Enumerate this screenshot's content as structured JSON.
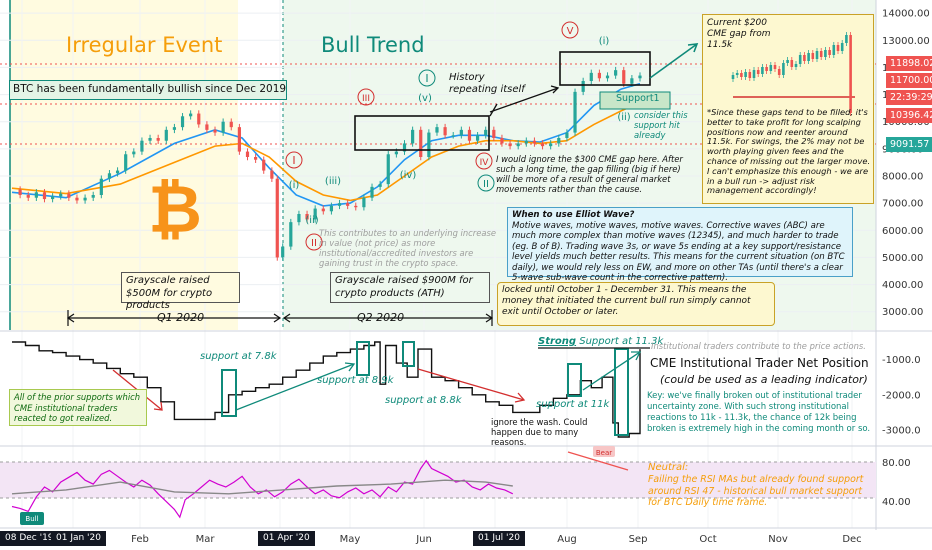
{
  "chart_data": {
    "type": "line",
    "title": "",
    "x_ticks": [
      "08 Dec '19",
      "01 Jan '20",
      "Feb",
      "Mar",
      "01 Apr '20",
      "May",
      "Jun",
      "01 Jul '20",
      "Aug",
      "Sep",
      "Oct",
      "Nov",
      "Dec"
    ],
    "price_axis": {
      "ticks": [
        14000,
        13000,
        12000,
        11000,
        10000,
        9000,
        8000,
        7000,
        6000,
        5000,
        4000,
        3000
      ],
      "range": [
        2400,
        14300
      ]
    },
    "price_labels": [
      {
        "value": "11898.02",
        "color": "#ef5350"
      },
      {
        "value": "11700.00",
        "color": "#ef5350"
      },
      {
        "value": "22:39:29",
        "color": "#ef5350"
      },
      {
        "value": "10396.42",
        "color": "#ef5350"
      },
      {
        "value": "9091.57",
        "color": "#26a69a"
      }
    ],
    "price_series": [
      [
        0,
        7500
      ],
      [
        3,
        7300
      ],
      [
        6,
        7200
      ],
      [
        9,
        7400
      ],
      [
        12,
        7150
      ],
      [
        15,
        7250
      ],
      [
        18,
        7350
      ],
      [
        21,
        7200
      ],
      [
        24,
        7100
      ],
      [
        27,
        7200
      ],
      [
        30,
        7300
      ],
      [
        33,
        7900
      ],
      [
        36,
        8100
      ],
      [
        39,
        8200
      ],
      [
        42,
        8800
      ],
      [
        45,
        8900
      ],
      [
        48,
        9300
      ],
      [
        51,
        9400
      ],
      [
        54,
        9300
      ],
      [
        57,
        9700
      ],
      [
        60,
        9800
      ],
      [
        63,
        10200
      ],
      [
        66,
        10300
      ],
      [
        69,
        9900
      ],
      [
        72,
        9700
      ],
      [
        75,
        9600
      ],
      [
        78,
        10000
      ],
      [
        81,
        9800
      ],
      [
        84,
        8900
      ],
      [
        87,
        8700
      ],
      [
        90,
        8600
      ],
      [
        93,
        8200
      ],
      [
        96,
        7900
      ],
      [
        98,
        5000
      ],
      [
        100,
        5400
      ],
      [
        103,
        6300
      ],
      [
        106,
        6600
      ],
      [
        109,
        6400
      ],
      [
        112,
        6800
      ],
      [
        115,
        6700
      ],
      [
        118,
        6900
      ],
      [
        121,
        7000
      ],
      [
        124,
        6900
      ],
      [
        127,
        6850
      ],
      [
        130,
        7200
      ],
      [
        133,
        7600
      ],
      [
        136,
        7700
      ],
      [
        139,
        8800
      ],
      [
        142,
        8900
      ],
      [
        145,
        9200
      ],
      [
        148,
        9700
      ],
      [
        151,
        8700
      ],
      [
        154,
        9600
      ],
      [
        157,
        9800
      ],
      [
        160,
        9500
      ],
      [
        163,
        9500
      ],
      [
        166,
        9700
      ],
      [
        169,
        9300
      ],
      [
        172,
        9500
      ],
      [
        175,
        9700
      ],
      [
        178,
        9400
      ],
      [
        181,
        9200
      ],
      [
        184,
        9100
      ],
      [
        187,
        9200
      ],
      [
        190,
        9300
      ],
      [
        193,
        9200
      ],
      [
        196,
        9100
      ],
      [
        199,
        9200
      ],
      [
        202,
        9400
      ],
      [
        205,
        9600
      ],
      [
        208,
        11100
      ],
      [
        211,
        11500
      ],
      [
        214,
        11800
      ],
      [
        217,
        11600
      ],
      [
        220,
        11700
      ],
      [
        223,
        11900
      ],
      [
        226,
        11400
      ],
      [
        229,
        11600
      ],
      [
        232,
        11700
      ]
    ],
    "ma_series": [
      {
        "name": "",
        "color": "#2196f3",
        "values": [
          [
            0,
            7400
          ],
          [
            20,
            7200
          ],
          [
            40,
            8100
          ],
          [
            60,
            9200
          ],
          [
            75,
            9700
          ],
          [
            85,
            9400
          ],
          [
            95,
            8300
          ],
          [
            105,
            7300
          ],
          [
            115,
            6900
          ],
          [
            125,
            7000
          ],
          [
            135,
            7600
          ],
          [
            145,
            8600
          ],
          [
            155,
            9300
          ],
          [
            165,
            9500
          ],
          [
            175,
            9500
          ],
          [
            185,
            9300
          ],
          [
            195,
            9250
          ],
          [
            205,
            9600
          ],
          [
            215,
            10600
          ],
          [
            225,
            11200
          ],
          [
            232,
            11400
          ]
        ]
      },
      {
        "name": "",
        "color": "#ff9800",
        "values": [
          [
            0,
            7550
          ],
          [
            20,
            7350
          ],
          [
            40,
            7700
          ],
          [
            60,
            8500
          ],
          [
            75,
            9100
          ],
          [
            85,
            9200
          ],
          [
            95,
            8700
          ],
          [
            105,
            7800
          ],
          [
            115,
            7300
          ],
          [
            125,
            7100
          ],
          [
            135,
            7300
          ],
          [
            145,
            8000
          ],
          [
            155,
            8700
          ],
          [
            165,
            9100
          ],
          [
            175,
            9300
          ],
          [
            185,
            9300
          ],
          [
            195,
            9200
          ],
          [
            205,
            9300
          ],
          [
            215,
            9900
          ],
          [
            225,
            10400
          ],
          [
            232,
            10700
          ]
        ]
      }
    ],
    "cot_axis": {
      "ticks": [
        -1000,
        -2000,
        -3000
      ],
      "range": [
        -3400,
        -300
      ]
    },
    "cot_series": [
      [
        0,
        -500
      ],
      [
        5,
        -600
      ],
      [
        10,
        -750
      ],
      [
        15,
        -800
      ],
      [
        20,
        -900
      ],
      [
        25,
        -1000
      ],
      [
        30,
        -1100
      ],
      [
        35,
        -1250
      ],
      [
        40,
        -1400
      ],
      [
        45,
        -1500
      ],
      [
        50,
        -1800
      ],
      [
        55,
        -2200
      ],
      [
        60,
        -2700
      ],
      [
        65,
        -2700
      ],
      [
        70,
        -2700
      ],
      [
        75,
        -2500
      ],
      [
        80,
        -2000
      ],
      [
        85,
        -1900
      ],
      [
        90,
        -1800
      ],
      [
        95,
        -1700
      ],
      [
        100,
        -1500
      ],
      [
        105,
        -1300
      ],
      [
        110,
        -1100
      ],
      [
        115,
        -900
      ],
      [
        120,
        -800
      ],
      [
        125,
        -700
      ],
      [
        130,
        -600
      ],
      [
        134,
        -500
      ],
      [
        136,
        -1700
      ],
      [
        138,
        -600
      ],
      [
        142,
        -1100
      ],
      [
        146,
        -1500
      ],
      [
        150,
        -700
      ],
      [
        155,
        -1500
      ],
      [
        160,
        -1600
      ],
      [
        165,
        -1800
      ],
      [
        170,
        -2000
      ],
      [
        175,
        -2200
      ],
      [
        180,
        -2300
      ],
      [
        185,
        -2500
      ],
      [
        190,
        -2500
      ],
      [
        195,
        -2300
      ],
      [
        200,
        -2100
      ],
      [
        205,
        -2000
      ],
      [
        210,
        -1600
      ],
      [
        214,
        -1800
      ],
      [
        218,
        -1500
      ],
      [
        222,
        -2800
      ],
      [
        224,
        -3200
      ],
      [
        228,
        -3100
      ],
      [
        232,
        -700
      ]
    ],
    "rsi_axis": {
      "ticks": [
        80,
        40
      ],
      "range": [
        15,
        95
      ]
    },
    "rsi_series": [
      [
        0,
        35
      ],
      [
        3,
        33
      ],
      [
        6,
        30
      ],
      [
        9,
        45
      ],
      [
        12,
        55
      ],
      [
        15,
        50
      ],
      [
        18,
        60
      ],
      [
        21,
        65
      ],
      [
        24,
        70
      ],
      [
        27,
        62
      ],
      [
        30,
        58
      ],
      [
        33,
        68
      ],
      [
        36,
        72
      ],
      [
        39,
        66
      ],
      [
        42,
        60
      ],
      [
        45,
        55
      ],
      [
        48,
        62
      ],
      [
        51,
        57
      ],
      [
        54,
        48
      ],
      [
        57,
        40
      ],
      [
        60,
        32
      ],
      [
        62,
        24
      ],
      [
        64,
        42
      ],
      [
        67,
        48
      ],
      [
        70,
        55
      ],
      [
        73,
        62
      ],
      [
        76,
        58
      ],
      [
        79,
        55
      ],
      [
        82,
        60
      ],
      [
        85,
        66
      ],
      [
        88,
        55
      ],
      [
        91,
        48
      ],
      [
        94,
        52
      ],
      [
        97,
        45
      ],
      [
        100,
        50
      ],
      [
        103,
        58
      ],
      [
        106,
        63
      ],
      [
        109,
        55
      ],
      [
        112,
        48
      ],
      [
        115,
        52
      ],
      [
        118,
        46
      ],
      [
        121,
        44
      ],
      [
        124,
        50
      ],
      [
        127,
        54
      ],
      [
        130,
        48
      ],
      [
        133,
        52
      ],
      [
        136,
        45
      ],
      [
        139,
        55
      ],
      [
        142,
        50
      ],
      [
        145,
        60
      ],
      [
        148,
        58
      ],
      [
        151,
        74
      ],
      [
        153,
        82
      ],
      [
        155,
        74
      ],
      [
        158,
        70
      ],
      [
        161,
        66
      ],
      [
        164,
        60
      ],
      [
        167,
        62
      ],
      [
        170,
        55
      ],
      [
        173,
        52
      ],
      [
        176,
        58
      ],
      [
        179,
        54
      ],
      [
        182,
        52
      ],
      [
        185,
        48
      ]
    ],
    "rsi_ma": [
      [
        0,
        48
      ],
      [
        20,
        52
      ],
      [
        40,
        60
      ],
      [
        60,
        50
      ],
      [
        80,
        48
      ],
      [
        100,
        52
      ],
      [
        120,
        56
      ],
      [
        140,
        58
      ],
      [
        160,
        62
      ],
      [
        175,
        60
      ],
      [
        185,
        56
      ]
    ],
    "ylabel": ""
  },
  "text": {
    "irregular_event": "Irregular Event",
    "bull_trend": "Bull Trend",
    "fundamental": "BTC has been fundamentally bullish since Dec 2019",
    "history": "History repeating itself",
    "support1": "Support1",
    "consider": "consider this support hit already",
    "gs500": "Grayscale raised $500M for crypto products",
    "gs900": "Grayscale raised $900M for crypto products (ATH)",
    "q1": "Q1 2020",
    "q2": "Q2 2020",
    "cme_ignore": "I would ignore the $300 CME gap here. After such a long time, the gap filling (big if here) will be more of a result of general market movements rather than the cause.",
    "contributes": "This contributes to an underlying increase in value (not price) as more institutional/accredited investors are gaining trust in the crypto space.",
    "elliot_title": "When to use Elliot Wave?",
    "elliot_body": "Motive waves, motive waves, motive waves. Corrective waves (ABC) are much more complex than motive waves (12345), and much harder to trade (eg. B of B). Trading wave 3s, or wave 5s ending at a key support/resistance level yields much better results. This means for the current situation (on BTC daily), we would rely less on EW, and more on other TAs (until there's a clear 5-wave sub-wave count in the corrective pattern).",
    "locked": "locked until October 1 - December 31. This means the money that initiated the current bull run simply cannot exit until October or later.",
    "inset_title": "Current $200 CME gap from 11.5k",
    "inset_body": "*Since these gaps tend to be filled, it's better to take profit for long scalping positions now and reenter around 11.5k. For swings, the 2% may not be worth playing given fees and the chance of missing out the larger move. I can't emphasize this enough - we are in a bull run -> adjust risk management accordingly!",
    "strong": "Strong",
    "support_113": "Support at 11.3k",
    "inst_traders": "Institutional traders contribute to the price actions.",
    "cme_title": "CME Institutional Trader Net Position",
    "cme_sub": "(could be used as a leading indicator)",
    "key_note": "Key: we've finally broken out of institutional trader uncertainty zone. With such strong institutional reactions to 11k - 11.3k, the chance of 12k being broken is extremely high in the coming month or so.",
    "prior_supports": "All of the prior supports which CME institutional traders reacted to got realized.",
    "sup78": "support at 7.8k",
    "sup89": "support at 8.9k",
    "sup88": "support at 8.8k",
    "sup11": "support at 11k",
    "wash": "ignore the wash. Could happen due to many reasons.",
    "neutral": "Neutral:",
    "neutral_body": "Failing the RSI MAs but already found support around RSI 47 - historical bull market support for BTC Daily time frame.",
    "bear": "Bear",
    "bull": "Bull",
    "waves": {
      "I": "I",
      "II": "II",
      "III": "III",
      "IV": "IV",
      "V": "V",
      "i": "i",
      "ii": "ii",
      "iii": "iii",
      "iv": "iv",
      "v": "v"
    }
  },
  "colors": {
    "irregular_bg": "#fffbe0",
    "bull_bg": "#eef8ee",
    "blue_box": "#dff4fb",
    "yellow_box": "#fdf8d0",
    "teal": "#0f8a7a",
    "red": "#d32f2f",
    "orange": "#f59e0b",
    "purple": "#d100d1"
  }
}
